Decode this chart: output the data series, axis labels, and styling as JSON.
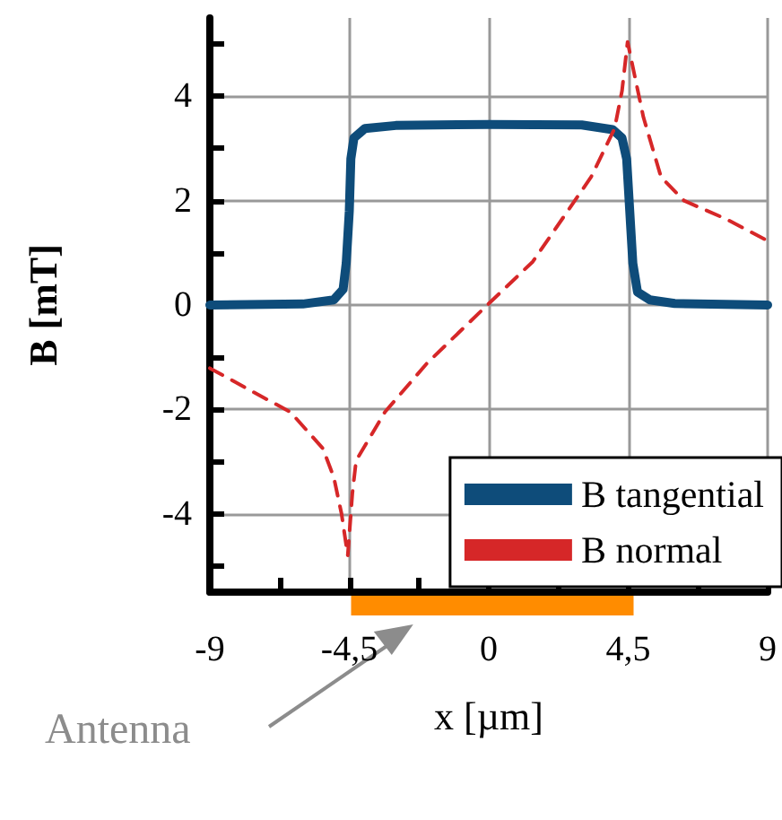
{
  "chart_data": {
    "type": "line",
    "xlabel": "x [µm]",
    "ylabel": "B [mT]",
    "xlim": [
      -9,
      9
    ],
    "xticks": [
      -9,
      {
        "value": -6.75,
        "label": null
      },
      {
        "value": -4.5,
        "label": "-4,5"
      },
      {
        "value": -2.25,
        "label": null
      },
      0,
      {
        "value": 2.25,
        "label": null
      },
      {
        "value": 4.5,
        "label": "4,5"
      },
      {
        "value": 6.75,
        "label": null
      },
      9
    ],
    "ylim": [
      -5.5,
      5.5
    ],
    "yticks": [
      {
        "value": -5,
        "label": null
      },
      -4,
      {
        "value": -3,
        "label": null
      },
      -2,
      {
        "value": -1,
        "label": null
      },
      0,
      {
        "value": 1,
        "label": null
      },
      2,
      {
        "value": 3,
        "label": null
      },
      4,
      {
        "value": 5,
        "label": null
      }
    ],
    "grid": true,
    "legend": "bottom right",
    "marker": "none",
    "series": [
      {
        "name": "B tangential",
        "color": "#0e4c7a",
        "line_style": "solid",
        "x": [
          -9,
          -6,
          -5,
          -4.7,
          -4.6,
          -4.5,
          -4.45,
          -4.35,
          -4,
          -3,
          0,
          3,
          4,
          4.3,
          4.45,
          4.55,
          4.65,
          4.8,
          5.2,
          6,
          9
        ],
        "values": [
          0,
          0.02,
          0.1,
          0.3,
          0.8,
          1.8,
          2.8,
          3.2,
          3.38,
          3.44,
          3.46,
          3.45,
          3.36,
          3.2,
          2.8,
          1.8,
          0.8,
          0.25,
          0.1,
          0.03,
          0
        ]
      },
      {
        "name": "B normal",
        "color": "#d62728",
        "line_style": "dashed",
        "x": [
          -9,
          -7.65,
          -6.4,
          -5.35,
          -5,
          -4.75,
          -4.55,
          -4.4,
          -4.28,
          -3.35,
          -2,
          -0.1,
          1.42,
          3.3,
          4.06,
          4.3,
          4.48,
          4.99,
          5.56,
          6.3,
          7.65,
          9
        ],
        "values": [
          -1.21,
          -1.65,
          -2.05,
          -2.75,
          -3.3,
          -4,
          -4.8,
          -3.6,
          -2.98,
          -2.05,
          -1.12,
          -0.03,
          0.83,
          2.45,
          3.38,
          4.1,
          5.04,
          3.6,
          2.45,
          2,
          1.65,
          1.23
        ]
      }
    ],
    "annotations": [
      "Antenna"
    ]
  }
}
